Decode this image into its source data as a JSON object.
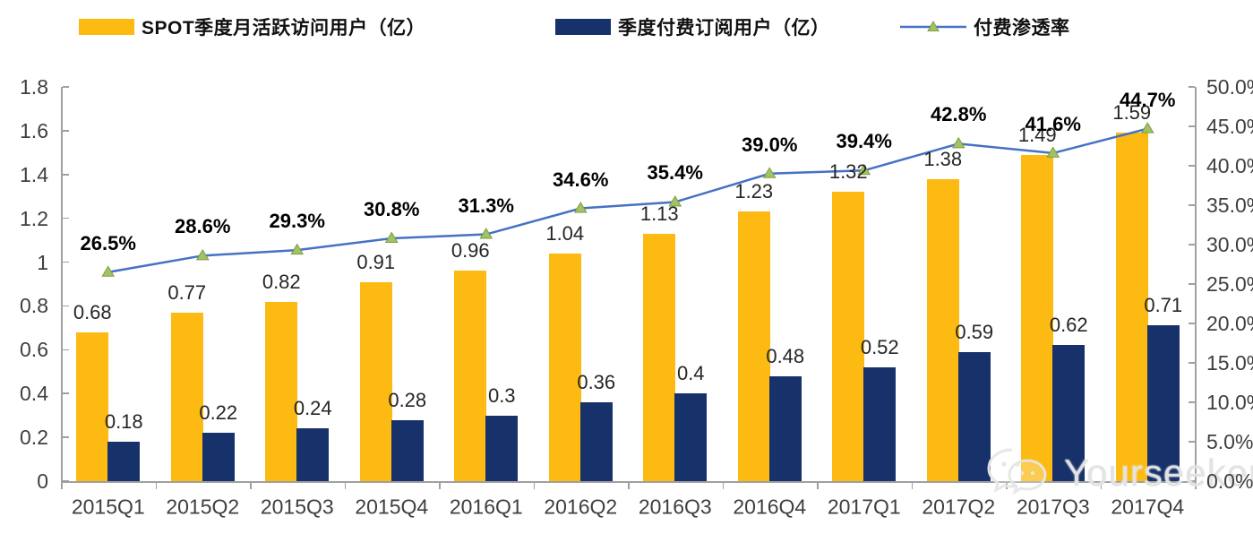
{
  "legend": {
    "mau": "SPOT季度月活跃访问用户（亿）",
    "paid": "季度付费订阅用户（亿）",
    "penetration": "付费渗透率"
  },
  "watermark": {
    "text": "Yourseeker"
  },
  "colors": {
    "mau_bar": "#FCBA12",
    "paid_bar": "#17326B",
    "line": "#4472C4",
    "marker_fill": "#A3C262",
    "marker_border": "#7E9B47",
    "axis": "#A0A0A0",
    "bar_label": "#262626",
    "tick_label": "#3F3F3F"
  },
  "chart_data": {
    "type": "bar",
    "subtype": "grouped-bars-with-line",
    "categories": [
      "2015Q1",
      "2015Q2",
      "2015Q3",
      "2015Q4",
      "2016Q1",
      "2016Q2",
      "2016Q3",
      "2016Q4",
      "2017Q1",
      "2017Q2",
      "2017Q3",
      "2017Q4"
    ],
    "series": [
      {
        "name": "SPOT季度月活跃访问用户（亿）",
        "type": "bar",
        "axis": "left",
        "values": [
          0.68,
          0.77,
          0.82,
          0.91,
          0.96,
          1.04,
          1.13,
          1.23,
          1.32,
          1.38,
          1.49,
          1.59
        ],
        "labels": [
          "0.68",
          "0.77",
          "0.82",
          "0.91",
          "0.96",
          "1.04",
          "1.13",
          "1.23",
          "1.32",
          "1.38",
          "1.49",
          "1.59"
        ]
      },
      {
        "name": "季度付费订阅用户（亿）",
        "type": "bar",
        "axis": "left",
        "values": [
          0.18,
          0.22,
          0.24,
          0.28,
          0.3,
          0.36,
          0.4,
          0.48,
          0.52,
          0.59,
          0.62,
          0.71
        ],
        "labels": [
          "0.18",
          "0.22",
          "0.24",
          "0.28",
          "0.3",
          "0.36",
          "0.4",
          "0.48",
          "0.52",
          "0.59",
          "0.62",
          "0.71"
        ]
      },
      {
        "name": "付费渗透率",
        "type": "line",
        "axis": "right",
        "values": [
          26.5,
          28.6,
          29.3,
          30.8,
          31.3,
          34.6,
          35.4,
          39.0,
          39.4,
          42.8,
          41.6,
          44.7
        ],
        "labels": [
          "26.5%",
          "28.6%",
          "29.3%",
          "30.8%",
          "31.3%",
          "34.6%",
          "35.4%",
          "39.0%",
          "39.4%",
          "42.8%",
          "41.6%",
          "44.7%"
        ]
      }
    ],
    "left_axis": {
      "min": 0,
      "max": 1.8,
      "ticks": [
        "0",
        "0.2",
        "0.4",
        "0.6",
        "0.8",
        "1",
        "1.2",
        "1.4",
        "1.6",
        "1.8"
      ]
    },
    "right_axis": {
      "min": 0,
      "max": 50,
      "ticks": [
        "0.0%",
        "5.0%",
        "10.0%",
        "15.0%",
        "20.0%",
        "25.0%",
        "30.0%",
        "35.0%",
        "40.0%",
        "45.0%",
        "50.0%"
      ]
    },
    "grid": false,
    "legend_position": "top"
  }
}
